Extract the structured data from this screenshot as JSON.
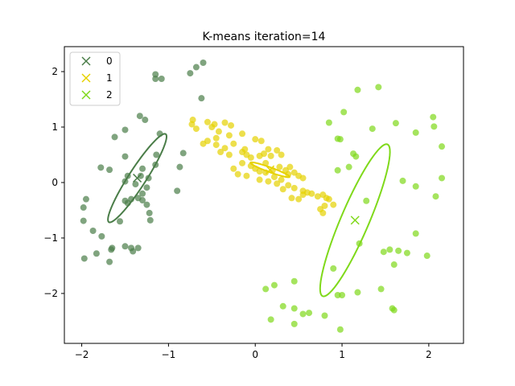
{
  "chart_data": {
    "type": "scatter",
    "title": "K-means iteration=14",
    "xlabel": "",
    "ylabel": "",
    "xlim": [
      -2.2,
      2.4
    ],
    "ylim": [
      -2.9,
      2.45
    ],
    "xticks": [
      -2,
      -1,
      0,
      1,
      2
    ],
    "yticks": [
      -2,
      -1,
      0,
      1,
      2
    ],
    "xtick_labels": [
      "−2",
      "−1",
      "0",
      "1",
      "2"
    ],
    "ytick_labels": [
      "−2",
      "−1",
      "0",
      "1",
      "2"
    ],
    "grid": false,
    "legend_position": "top-left",
    "series": [
      {
        "name": "0",
        "color": "#4a7d48",
        "centroid": [
          -1.36,
          0.08
        ],
        "ellipse": {
          "center": [
            -1.36,
            0.08
          ],
          "semi_major": 0.86,
          "semi_minor": 0.11,
          "angle_deg": 68
        },
        "points": [
          [
            -1.15,
            1.95
          ],
          [
            -1.08,
            1.87
          ],
          [
            -1.15,
            1.87
          ],
          [
            -0.75,
            1.97
          ],
          [
            -0.68,
            2.08
          ],
          [
            -0.6,
            2.16
          ],
          [
            -0.62,
            1.52
          ],
          [
            -1.33,
            1.2
          ],
          [
            -1.27,
            1.13
          ],
          [
            -1.5,
            0.95
          ],
          [
            -1.62,
            0.82
          ],
          [
            -1.1,
            0.88
          ],
          [
            -0.83,
            0.53
          ],
          [
            -1.14,
            0.5
          ],
          [
            -1.5,
            0.47
          ],
          [
            -1.78,
            0.27
          ],
          [
            -1.68,
            0.23
          ],
          [
            -0.87,
            0.28
          ],
          [
            -1.3,
            0.25
          ],
          [
            -1.47,
            0.12
          ],
          [
            -1.32,
            0.12
          ],
          [
            -1.5,
            0.02
          ],
          [
            -1.38,
            -0.03
          ],
          [
            -1.25,
            -0.09
          ],
          [
            -0.9,
            -0.15
          ],
          [
            -1.95,
            -0.3
          ],
          [
            -1.98,
            -0.45
          ],
          [
            -1.3,
            -0.2
          ],
          [
            -1.43,
            -0.3
          ],
          [
            -1.5,
            -0.33
          ],
          [
            -1.47,
            -0.37
          ],
          [
            -1.35,
            -0.28
          ],
          [
            -1.25,
            -0.4
          ],
          [
            -1.22,
            -0.55
          ],
          [
            -1.21,
            -0.68
          ],
          [
            -1.98,
            -0.69
          ],
          [
            -1.87,
            -0.87
          ],
          [
            -1.77,
            -0.97
          ],
          [
            -1.65,
            -1.18
          ],
          [
            -1.66,
            -1.21
          ],
          [
            -1.5,
            -1.15
          ],
          [
            -1.43,
            -1.18
          ],
          [
            -1.35,
            -1.18
          ],
          [
            -1.83,
            -1.28
          ],
          [
            -1.97,
            -1.37
          ],
          [
            -1.68,
            -1.43
          ],
          [
            -1.56,
            -0.7
          ],
          [
            -1.41,
            -1.24
          ],
          [
            -1.3,
            -0.32
          ],
          [
            -1.23,
            0.08
          ],
          [
            -1.15,
            0.32
          ]
        ]
      },
      {
        "name": "1",
        "color": "#e6d200",
        "centroid": [
          0.17,
          0.23
        ],
        "ellipse": {
          "center": [
            0.17,
            0.23
          ],
          "semi_major": 0.26,
          "semi_minor": 0.04,
          "angle_deg": -30
        },
        "points": [
          [
            -0.72,
            1.13
          ],
          [
            -0.73,
            1.05
          ],
          [
            -0.68,
            0.97
          ],
          [
            -0.55,
            1.09
          ],
          [
            -0.5,
            1.0
          ],
          [
            -0.47,
            1.05
          ],
          [
            -0.35,
            1.08
          ],
          [
            -0.28,
            1.03
          ],
          [
            -0.42,
            0.92
          ],
          [
            -0.3,
            0.85
          ],
          [
            -0.15,
            0.88
          ],
          [
            -0.45,
            0.8
          ],
          [
            -0.55,
            0.75
          ],
          [
            -0.6,
            0.7
          ],
          [
            -0.45,
            0.68
          ],
          [
            -0.35,
            0.62
          ],
          [
            -0.25,
            0.7
          ],
          [
            -0.12,
            0.6
          ],
          [
            0.0,
            0.78
          ],
          [
            0.07,
            0.75
          ],
          [
            0.15,
            0.6
          ],
          [
            0.25,
            0.58
          ],
          [
            0.3,
            0.5
          ],
          [
            0.18,
            0.48
          ],
          [
            0.1,
            0.52
          ],
          [
            0.05,
            0.48
          ],
          [
            -0.05,
            0.45
          ],
          [
            -0.1,
            0.5
          ],
          [
            -0.15,
            0.35
          ],
          [
            -0.05,
            0.3
          ],
          [
            0.0,
            0.25
          ],
          [
            0.05,
            0.2
          ],
          [
            0.12,
            0.18
          ],
          [
            0.2,
            0.22
          ],
          [
            0.28,
            0.28
          ],
          [
            0.35,
            0.22
          ],
          [
            0.38,
            0.15
          ],
          [
            0.45,
            0.18
          ],
          [
            0.5,
            0.12
          ],
          [
            0.55,
            0.08
          ],
          [
            0.3,
            0.05
          ],
          [
            0.25,
            -0.02
          ],
          [
            0.38,
            -0.05
          ],
          [
            0.45,
            -0.1
          ],
          [
            0.55,
            -0.15
          ],
          [
            0.6,
            -0.18
          ],
          [
            0.65,
            -0.2
          ],
          [
            0.72,
            -0.25
          ],
          [
            0.78,
            -0.22
          ],
          [
            0.82,
            -0.28
          ],
          [
            0.85,
            -0.3
          ],
          [
            0.8,
            -0.42
          ],
          [
            0.75,
            -0.48
          ],
          [
            0.78,
            -0.55
          ],
          [
            0.9,
            -0.4
          ],
          [
            0.5,
            -0.3
          ],
          [
            0.55,
            -0.22
          ],
          [
            0.42,
            -0.28
          ],
          [
            0.32,
            -0.12
          ],
          [
            -0.2,
            0.15
          ],
          [
            -0.25,
            0.25
          ],
          [
            -0.1,
            0.12
          ],
          [
            0.05,
            0.05
          ],
          [
            0.15,
            0.02
          ],
          [
            0.22,
            0.1
          ],
          [
            0.4,
            0.28
          ],
          [
            -0.15,
            0.55
          ],
          [
            -0.3,
            0.5
          ],
          [
            -0.4,
            0.55
          ],
          [
            0.12,
            0.35
          ]
        ]
      },
      {
        "name": "2",
        "color": "#7fd91a",
        "centroid": [
          1.15,
          -0.68
        ],
        "ellipse": {
          "center": [
            1.15,
            -0.68
          ],
          "semi_major": 1.42,
          "semi_minor": 0.17,
          "angle_deg": 75
        },
        "points": [
          [
            1.18,
            1.67
          ],
          [
            1.42,
            1.72
          ],
          [
            1.02,
            1.27
          ],
          [
            0.85,
            1.08
          ],
          [
            1.35,
            0.97
          ],
          [
            1.62,
            1.07
          ],
          [
            2.05,
            1.18
          ],
          [
            2.06,
            1.01
          ],
          [
            0.98,
            0.78
          ],
          [
            0.95,
            0.79
          ],
          [
            1.85,
            0.9
          ],
          [
            2.15,
            0.65
          ],
          [
            1.13,
            0.52
          ],
          [
            1.16,
            0.47
          ],
          [
            1.08,
            0.28
          ],
          [
            0.95,
            0.22
          ],
          [
            1.7,
            0.03
          ],
          [
            2.15,
            0.08
          ],
          [
            1.85,
            -0.07
          ],
          [
            2.08,
            -0.25
          ],
          [
            1.28,
            -0.33
          ],
          [
            1.55,
            -1.21
          ],
          [
            1.48,
            -1.25
          ],
          [
            1.65,
            -1.23
          ],
          [
            1.6,
            -1.48
          ],
          [
            1.75,
            -1.27
          ],
          [
            1.98,
            -1.32
          ],
          [
            1.85,
            -0.92
          ],
          [
            1.45,
            -1.92
          ],
          [
            1.18,
            -1.98
          ],
          [
            1.0,
            -2.03
          ],
          [
            0.95,
            -2.03
          ],
          [
            1.58,
            -2.27
          ],
          [
            1.6,
            -2.3
          ],
          [
            0.12,
            -1.92
          ],
          [
            0.22,
            -1.85
          ],
          [
            0.45,
            -1.78
          ],
          [
            0.32,
            -2.23
          ],
          [
            0.45,
            -2.27
          ],
          [
            0.55,
            -2.37
          ],
          [
            0.62,
            -2.35
          ],
          [
            0.18,
            -2.47
          ],
          [
            0.45,
            -2.55
          ],
          [
            0.8,
            -2.4
          ],
          [
            0.98,
            -2.65
          ],
          [
            0.9,
            -1.55
          ],
          [
            1.2,
            -1.1
          ]
        ]
      }
    ]
  }
}
